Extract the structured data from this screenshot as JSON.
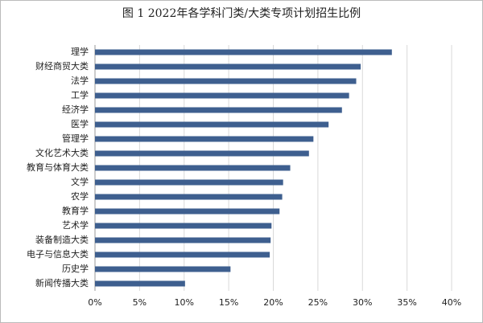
{
  "chart_data": {
    "type": "bar",
    "orientation": "horizontal",
    "title": "图 1 2022年各学科门类/大类专项计划招生比例",
    "categories": [
      "理学",
      "财经商贸大类",
      "法学",
      "工学",
      "经济学",
      "医学",
      "管理学",
      "文化艺术大类",
      "教育与体育大类",
      "文学",
      "农学",
      "教育学",
      "艺术学",
      "装备制造大类",
      "电子与信息大类",
      "历史学",
      "新闻传播大类"
    ],
    "values": [
      33.3,
      29.8,
      29.3,
      28.5,
      27.7,
      26.2,
      24.5,
      24.0,
      21.9,
      21.1,
      21.0,
      20.7,
      19.8,
      19.7,
      19.6,
      15.2,
      10.1
    ],
    "color": "#3e5f8f",
    "xlim": [
      0,
      40
    ],
    "xticks": [
      {
        "value": 0,
        "label": "0%"
      },
      {
        "value": 5,
        "label": "5%"
      },
      {
        "value": 10,
        "label": "10%"
      },
      {
        "value": 15,
        "label": "15%"
      },
      {
        "value": 20,
        "label": "20%"
      },
      {
        "value": 25,
        "label": "25%"
      },
      {
        "value": 30,
        "label": "30%"
      },
      {
        "value": 35,
        "label": "35%"
      },
      {
        "value": 40,
        "label": "40%"
      }
    ],
    "grid": true
  }
}
